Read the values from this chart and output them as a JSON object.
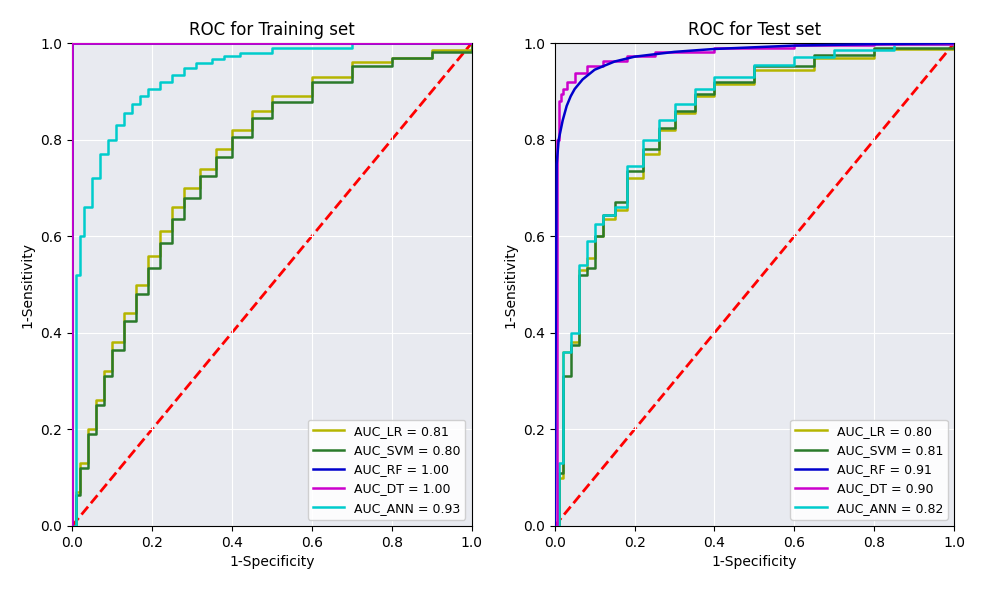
{
  "train_title": "ROC for Training set",
  "test_title": "ROC for Test set",
  "xlabel": "1-Specificity",
  "ylabel": "1-Sensitivity",
  "background_color": "#e8eaf0",
  "colors": {
    "LR": "#b5b500",
    "SVM": "#2a7a2a",
    "RF": "#0000cc",
    "DT": "#cc00cc",
    "ANN": "#00cccc"
  },
  "train_legend": [
    "AUC_LR = 0.81",
    "AUC_SVM = 0.80",
    "AUC_RF = 1.00",
    "AUC_DT = 1.00",
    "AUC_ANN = 0.93"
  ],
  "test_legend": [
    "AUC_LR = 0.80",
    "AUC_SVM = 0.81",
    "AUC_RF = 0.91",
    "AUC_DT = 0.90",
    "AUC_ANN = 0.82"
  ]
}
